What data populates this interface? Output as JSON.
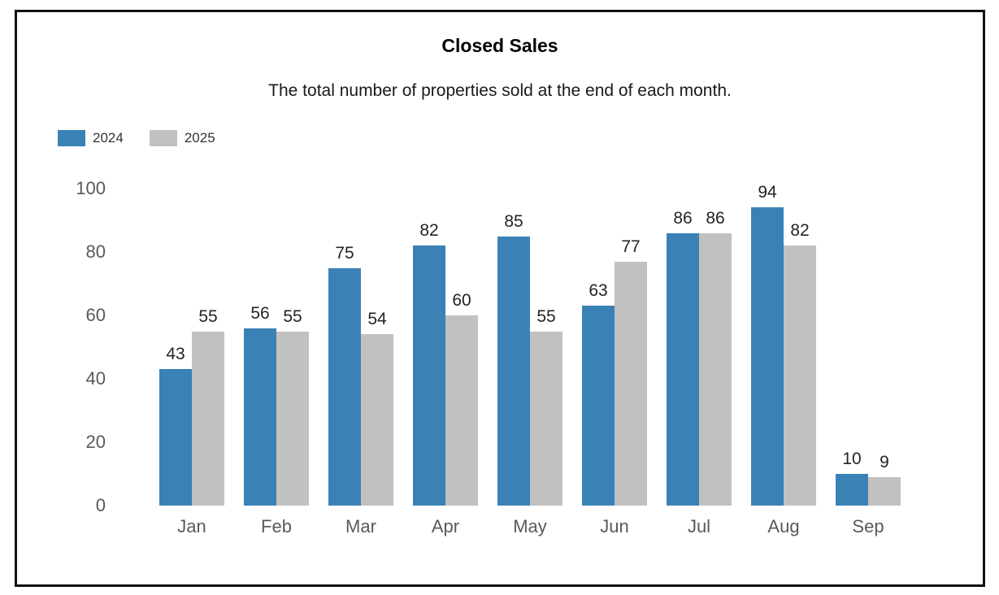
{
  "header": {
    "title": "Closed Sales",
    "subtitle": "The total number of properties sold at the end of each month."
  },
  "legend": {
    "items": [
      {
        "label": "2024",
        "color": "#3a82b6"
      },
      {
        "label": "2025",
        "color": "#c1c1c1"
      }
    ]
  },
  "chart_data": {
    "type": "bar",
    "title": "Closed Sales",
    "subtitle": "The total number of properties sold at the end of each month.",
    "categories": [
      "Jan",
      "Feb",
      "Mar",
      "Apr",
      "May",
      "Jun",
      "Jul",
      "Aug",
      "Sep"
    ],
    "series": [
      {
        "name": "2024",
        "color": "#3a82b6",
        "values": [
          43,
          56,
          75,
          82,
          85,
          63,
          86,
          94,
          10
        ]
      },
      {
        "name": "2025",
        "color": "#c1c1c1",
        "values": [
          55,
          55,
          54,
          60,
          55,
          77,
          86,
          82,
          9
        ]
      }
    ],
    "xlabel": "",
    "ylabel": "",
    "ylim": [
      0,
      100
    ],
    "y_ticks": [
      0,
      20,
      40,
      60,
      80,
      100
    ],
    "grid": false,
    "legend_position": "top-left",
    "data_labels": true,
    "axis_text_color": "#595959",
    "data_label_color": "#252423"
  }
}
